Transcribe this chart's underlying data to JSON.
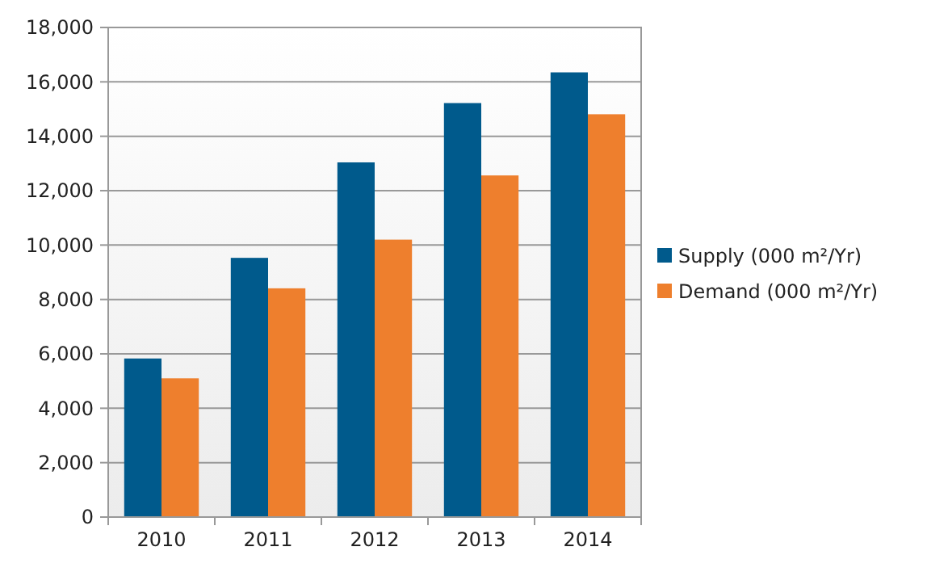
{
  "chart_data": {
    "type": "bar",
    "categories": [
      "2010",
      "2011",
      "2012",
      "2013",
      "2014"
    ],
    "series": [
      {
        "name": "Supply (000 m²/Yr)",
        "color": "#005a8c",
        "values": [
          5830,
          9530,
          13040,
          15220,
          16350
        ]
      },
      {
        "name": "Demand (000 m²/Yr)",
        "color": "#ee7f2d",
        "values": [
          5100,
          8410,
          10200,
          12560,
          14810
        ]
      }
    ],
    "ylim": [
      0,
      18000
    ],
    "yticks": [
      {
        "value": 0,
        "label": "0"
      },
      {
        "value": 2000,
        "label": "2,000"
      },
      {
        "value": 4000,
        "label": "4,000"
      },
      {
        "value": 6000,
        "label": "6,000"
      },
      {
        "value": 8000,
        "label": "8,000"
      },
      {
        "value": 10000,
        "label": "10,000"
      },
      {
        "value": 12000,
        "label": "12,000"
      },
      {
        "value": 14000,
        "label": "14,000"
      },
      {
        "value": 16000,
        "label": "16,000"
      },
      {
        "value": 18000,
        "label": "18,000"
      }
    ],
    "grid": "y",
    "legend": "right"
  }
}
